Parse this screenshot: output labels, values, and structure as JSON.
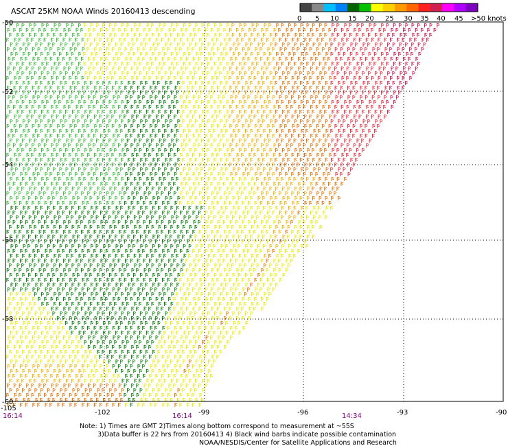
{
  "title": "ASCAT 25KM NOAA Winds 20160413 descending",
  "legend": {
    "labels": [
      "0",
      "5",
      "10",
      "15",
      "20",
      "25",
      "30",
      "35",
      "40",
      "45",
      ">50 knots"
    ],
    "colors": [
      "#444444",
      "#888888",
      "#00bfff",
      "#0080ff",
      "#006400",
      "#00c000",
      "#ffff00",
      "#ffd000",
      "#ff9900",
      "#ff6600",
      "#ff2020",
      "#d02050",
      "#ff00ff",
      "#b000ff",
      "#8000c0"
    ]
  },
  "axes": {
    "lon_labels": [
      "-105",
      "-102",
      "-99",
      "-96",
      "-93",
      "-90"
    ],
    "lat_labels": [
      "-50",
      "-52",
      "-54",
      "-56",
      "-58",
      "-60"
    ]
  },
  "times": [
    "16:14",
    "16:14",
    "14:34"
  ],
  "notes": [
    "Note: 1) Times are GMT 2)Times along bottom correspond to measurement at ~55S",
    "3)Data buffer is 22 hrs from 20160413 4) Black wind barbs indicate possible contamination",
    "NOAA/NESDIS/Center for Satellite Applications and Research"
  ],
  "colors": {
    "wind_dark_green": "#007a00",
    "wind_green": "#33b833",
    "wind_yellow": "#e8e800",
    "wind_gold": "#f0b000",
    "wind_orange": "#e07000",
    "wind_red": "#e02838",
    "wind_crimson": "#c8104a",
    "grid": "#000000"
  }
}
